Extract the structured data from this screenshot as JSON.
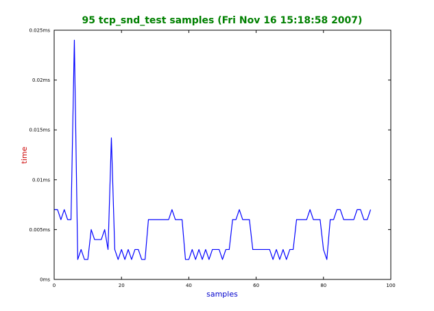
{
  "colors": {
    "title": "#008000",
    "xlabel": "#0000cc",
    "ylabel": "#cc0000",
    "line": "#0000ff",
    "axes": "#000000"
  },
  "chart_data": {
    "type": "line",
    "title": "95 tcp_snd_test samples (Fri Nov 16 15:18:58 2007)",
    "xlabel": "samples",
    "ylabel": "time",
    "xlim": [
      0,
      100
    ],
    "ylim": [
      0,
      0.025
    ],
    "x_ticks": [
      {
        "value": 0,
        "label": "0"
      },
      {
        "value": 20,
        "label": "20"
      },
      {
        "value": 40,
        "label": "40"
      },
      {
        "value": 60,
        "label": "60"
      },
      {
        "value": 80,
        "label": "80"
      },
      {
        "value": 100,
        "label": "100"
      }
    ],
    "y_ticks": [
      {
        "value": 0,
        "label": "0ms"
      },
      {
        "value": 0.005,
        "label": "0.005ms"
      },
      {
        "value": 0.01,
        "label": "0.01ms"
      },
      {
        "value": 0.015,
        "label": "0.015ms"
      },
      {
        "value": 0.02,
        "label": "0.02ms"
      },
      {
        "value": 0.025,
        "label": "0.025ms"
      }
    ],
    "grid": false,
    "series": [
      {
        "values": [
          0.007,
          0.007,
          0.006,
          0.007,
          0.006,
          0.006,
          0.024,
          0.002,
          0.003,
          0.002,
          0.002,
          0.005,
          0.004,
          0.004,
          0.004,
          0.005,
          0.003,
          0.0142,
          0.003,
          0.002,
          0.003,
          0.002,
          0.003,
          0.002,
          0.003,
          0.003,
          0.002,
          0.002,
          0.006,
          0.006,
          0.006,
          0.006,
          0.006,
          0.006,
          0.006,
          0.007,
          0.006,
          0.006,
          0.006,
          0.002,
          0.002,
          0.003,
          0.002,
          0.003,
          0.002,
          0.003,
          0.002,
          0.003,
          0.003,
          0.003,
          0.002,
          0.003,
          0.003,
          0.006,
          0.006,
          0.007,
          0.006,
          0.006,
          0.006,
          0.003,
          0.003,
          0.003,
          0.003,
          0.003,
          0.003,
          0.002,
          0.003,
          0.002,
          0.003,
          0.002,
          0.003,
          0.003,
          0.006,
          0.006,
          0.006,
          0.006,
          0.007,
          0.006,
          0.006,
          0.006,
          0.003,
          0.002,
          0.006,
          0.006,
          0.007,
          0.007,
          0.006,
          0.006,
          0.006,
          0.006,
          0.007,
          0.007,
          0.006,
          0.006,
          0.007
        ]
      }
    ]
  }
}
